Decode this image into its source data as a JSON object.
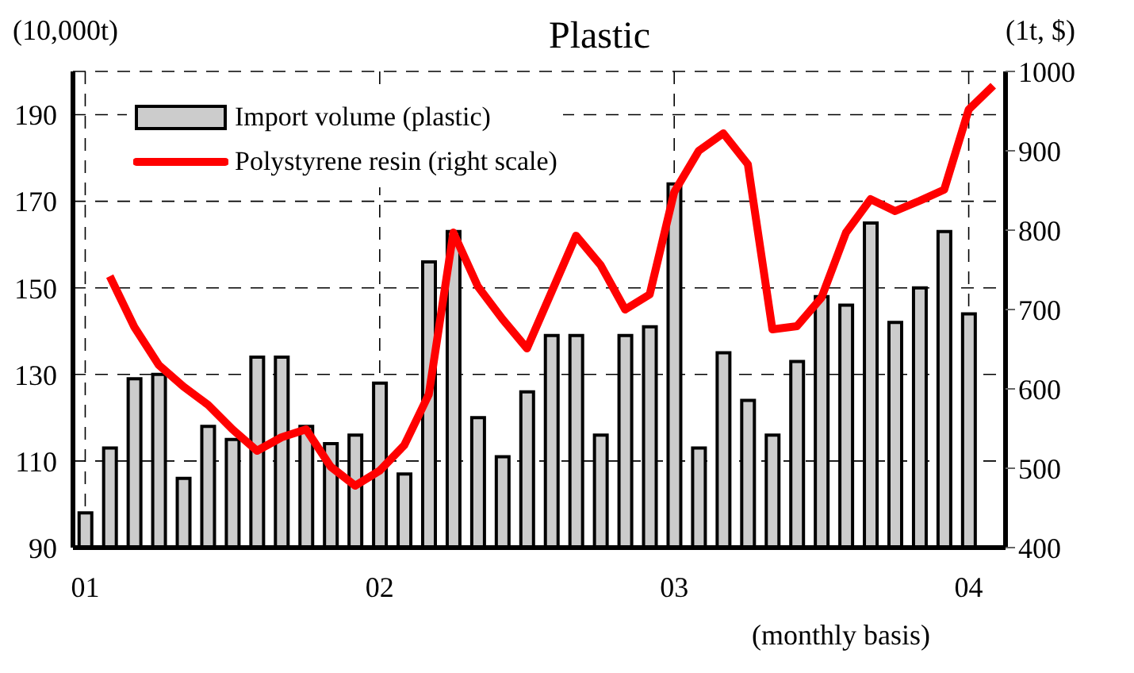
{
  "chart_data": {
    "type": "bar",
    "title": "Plastic",
    "xlabel": "(monthly basis)",
    "ylabel": "(10,000t)",
    "y2label": "(1t, $)",
    "categories": [
      "01",
      null,
      null,
      null,
      null,
      null,
      null,
      null,
      null,
      null,
      null,
      null,
      "02",
      null,
      null,
      null,
      null,
      null,
      null,
      null,
      null,
      null,
      null,
      null,
      "03",
      null,
      null,
      null,
      null,
      null,
      null,
      null,
      null,
      null,
      null,
      null,
      "04",
      null
    ],
    "series": [
      {
        "name": "Import volume (plastic)",
        "color": "#cccccc",
        "values": [
          98,
          113,
          129,
          130,
          106,
          118,
          115,
          134,
          134,
          118,
          114,
          116,
          128,
          107,
          156,
          163,
          120,
          111,
          126,
          139,
          139,
          116,
          139,
          141,
          174,
          113,
          135,
          124,
          116,
          133,
          148,
          146,
          165,
          142,
          150,
          163,
          144,
          null
        ]
      },
      {
        "name": "Polystyrene resin (right scale)",
        "type": "line",
        "axis": "y2",
        "color": "#ff0000",
        "values": [
          null,
          742,
          678,
          630,
          603,
          580,
          549,
          522,
          539,
          549,
          502,
          478,
          497,
          529,
          593,
          797,
          729,
          688,
          651,
          722,
          793,
          756,
          700,
          719,
          848,
          900,
          922,
          883,
          675,
          679,
          715,
          797,
          839,
          824,
          837,
          851,
          952,
          982
        ]
      }
    ],
    "ylim": [
      90,
      200
    ],
    "yticks": [
      90,
      110,
      130,
      150,
      170,
      190
    ],
    "y2lim": [
      400,
      1000
    ],
    "y2ticks": [
      400,
      500,
      600,
      700,
      800,
      900,
      1000
    ],
    "grid": true,
    "legend": "top left",
    "marker": "none",
    "line_style": "solid"
  }
}
